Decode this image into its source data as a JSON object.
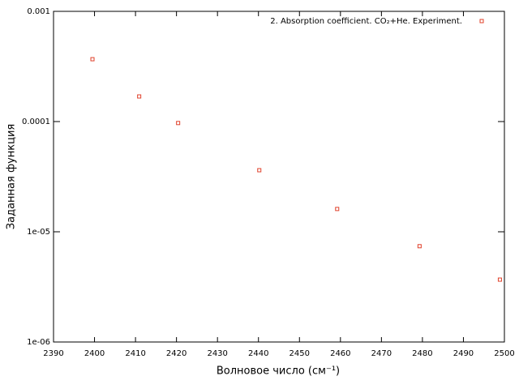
{
  "chart_data": {
    "type": "scatter",
    "xlabel": "Волновое число (см⁻¹)",
    "ylabel": "Заданная функция",
    "xlim": [
      2390,
      2500
    ],
    "xticks": [
      2390,
      2400,
      2410,
      2420,
      2430,
      2440,
      2450,
      2460,
      2470,
      2480,
      2490,
      2500
    ],
    "ylim": [
      1e-06,
      0.001
    ],
    "yticks": [
      {
        "value": 1e-06,
        "label": "1e-06"
      },
      {
        "value": 1e-05,
        "label": "1e-05"
      },
      0.0001,
      0.001
    ],
    "log_y": true,
    "legend": "upper right",
    "series": [
      {
        "name": "2. Absorption coefficient. CO₂+He. Experiment.",
        "color": "#e0402a",
        "x": [
          2399.5,
          2410.9,
          2420.4,
          2440.2,
          2459.2,
          2479.3,
          2498.9
        ],
        "values": [
          0.000368,
          0.000169,
          9.7e-05,
          3.62e-05,
          1.61e-05,
          7.4e-06,
          3.68e-06
        ]
      }
    ]
  }
}
